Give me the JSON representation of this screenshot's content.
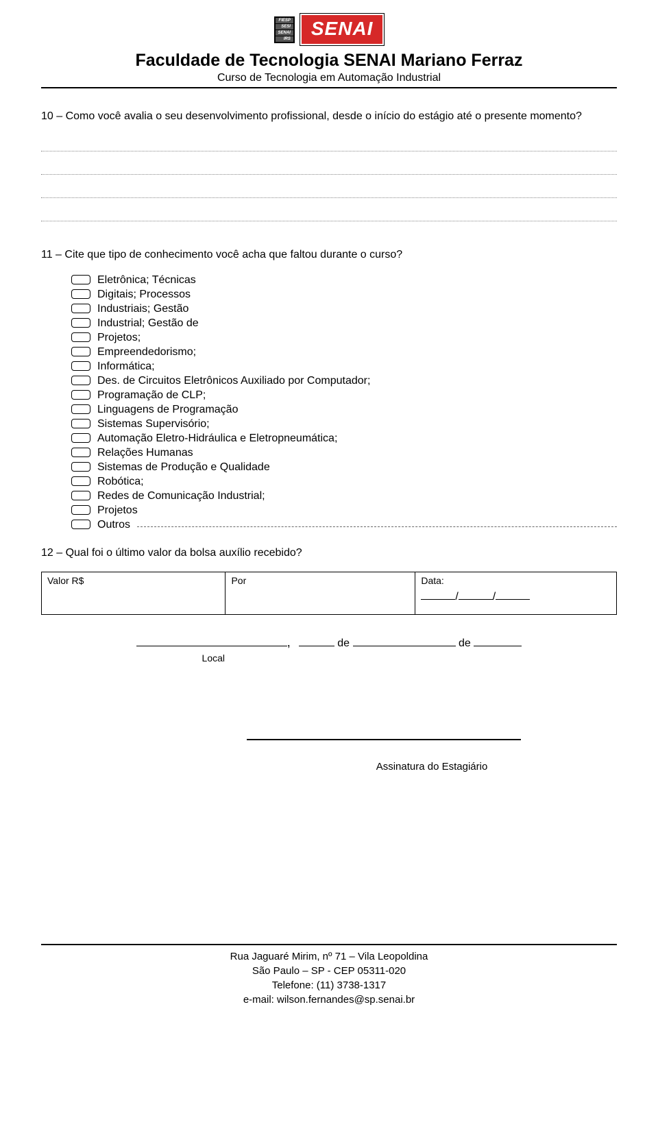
{
  "header": {
    "fiesp_lines": [
      "FIESP",
      "SESI",
      "SENAI",
      "IRS"
    ],
    "senai_logo_text": "SENAI",
    "title": "Faculdade de Tecnologia SENAI Mariano Ferraz",
    "subtitle": "Curso de Tecnologia em Automação Industrial"
  },
  "q10": {
    "text": "10 – Como você avalia o seu desenvolvimento profissional, desde o início do estágio até o presente momento?"
  },
  "q11": {
    "text": "11 – Cite que tipo de conhecimento você acha que faltou durante o curso?",
    "options": [
      "Eletrônica; Técnicas",
      "Digitais; Processos",
      "Industriais; Gestão",
      "Industrial; Gestão de",
      "Projetos;",
      "Empreendedorismo;",
      "Informática;",
      "Des. de Circuitos Eletrônicos Auxiliado por Computador;",
      "Programação de CLP;",
      "Linguagens de Programação",
      "Sistemas Supervisório;",
      "Automação Eletro-Hidráulica e Eletropneumática;",
      "Relações Humanas",
      "Sistemas de Produção e Qualidade",
      "Robótica;",
      "Redes de Comunicação Industrial;",
      "Projetos",
      "Outros"
    ]
  },
  "q12": {
    "text": "12 – Qual foi o último valor da bolsa auxílio recebido?",
    "col1_label": "Valor R$",
    "col2_label": "Por",
    "col3_label": "Data:",
    "date_sep": "/"
  },
  "sig": {
    "local_label": "Local",
    "comma": ",",
    "de1": "de",
    "de2": "de",
    "signature_label": "Assinatura do Estagiário"
  },
  "footer": {
    "line1": "Rua Jaguaré Mirim, nº 71 – Vila Leopoldina",
    "line2": "São Paulo – SP - CEP 05311-020",
    "line3": "Telefone: (11) 3738-1317",
    "line4": "e-mail: wilson.fernandes@sp.senai.br"
  }
}
